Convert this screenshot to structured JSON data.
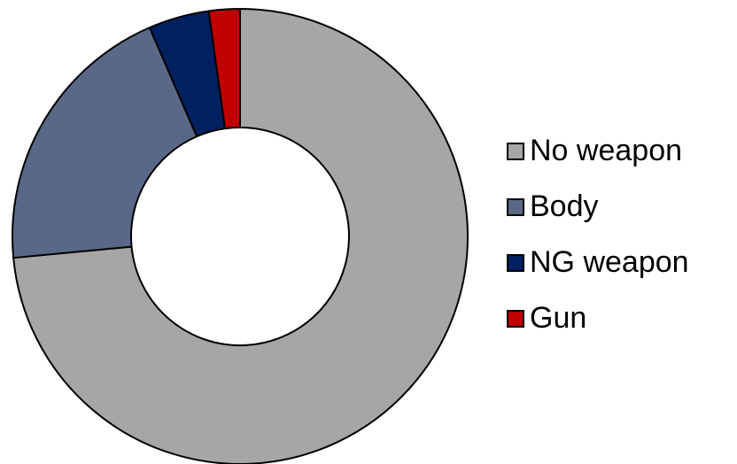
{
  "chart_data": {
    "type": "pie",
    "subtype": "donut",
    "title": "",
    "categories": [
      "No weapon",
      "Body",
      "NG weapon",
      "Gun"
    ],
    "values": [
      73.5,
      20.0,
      4.3,
      2.2
    ],
    "unit": "percent",
    "colors": [
      "#a6a6a6",
      "#596887",
      "#002060",
      "#c00000"
    ],
    "start_angle": "12 o'clock",
    "direction": "clockwise",
    "legend": {
      "position": "right",
      "items": [
        {
          "label": "No weapon",
          "color": "#a6a6a6"
        },
        {
          "label": "Body",
          "color": "#596887"
        },
        {
          "label": "NG weapon",
          "color": "#002060"
        },
        {
          "label": "Gun",
          "color": "#c00000"
        }
      ]
    }
  }
}
